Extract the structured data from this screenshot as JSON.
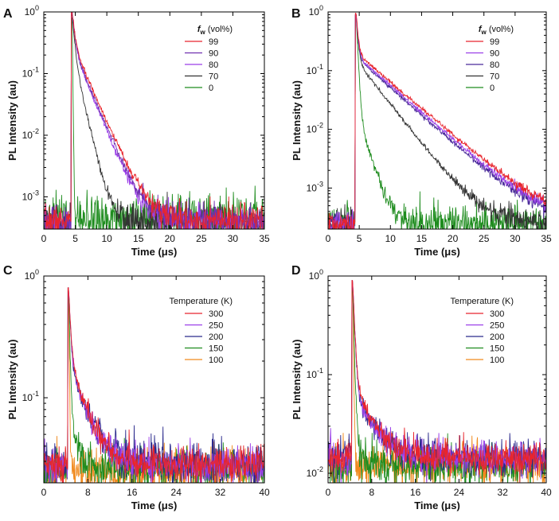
{
  "chart_data": [
    {
      "panel_label": "A",
      "type": "line",
      "yscale": "log",
      "xlabel": "Time (μs)",
      "ylabel": "PL Intensity (au)",
      "xlim": [
        0,
        35
      ],
      "ylim": [
        0.0003,
        1.0
      ],
      "xticks": [
        "0",
        "5",
        "10",
        "15",
        "20",
        "25",
        "30",
        "35"
      ],
      "xtick_values": [
        0,
        5,
        10,
        15,
        20,
        25,
        30,
        35
      ],
      "yticks": [
        {
          "value": 1,
          "base": "10",
          "exp": "0"
        },
        {
          "value": 0.1,
          "base": "10",
          "exp": "-1"
        },
        {
          "value": 0.01,
          "base": "10",
          "exp": "-2"
        },
        {
          "value": 0.001,
          "base": "10",
          "exp": "-3"
        }
      ],
      "legend_title": "f",
      "legend_title_sub": "w",
      "legend_title_rest": " (vol%)",
      "legend_position": "top-right",
      "series": [
        {
          "name": "99",
          "color": "#e8252d",
          "peak_time": 4.5,
          "peak": 1.0,
          "tau1": 0.35,
          "amp_long": 0.3,
          "tau2": 1.9,
          "floor": 0.0004,
          "noise": 0.3
        },
        {
          "name": "90",
          "color": "#7030b0",
          "peak_time": 4.5,
          "peak": 0.95,
          "tau1": 0.35,
          "amp_long": 0.28,
          "tau2": 1.8,
          "floor": 0.0004,
          "noise": 0.3
        },
        {
          "name": "80",
          "color": "#9b3fe8",
          "peak_time": 4.5,
          "peak": 0.93,
          "tau1": 0.35,
          "amp_long": 0.27,
          "tau2": 1.75,
          "floor": 0.0004,
          "noise": 0.3
        },
        {
          "name": "70",
          "color": "#333333",
          "peak_time": 4.5,
          "peak": 0.9,
          "tau1": 0.3,
          "amp_long": 0.22,
          "tau2": 1.0,
          "floor": 0.0004,
          "noise": 0.3
        },
        {
          "name": "0",
          "color": "#1e8c1e",
          "peak_time": 4.5,
          "peak": 0.8,
          "tau1": 0.05,
          "amp_long": 0.0,
          "tau2": 0.1,
          "floor": 0.00045,
          "noise": 0.45
        }
      ]
    },
    {
      "panel_label": "B",
      "type": "line",
      "yscale": "log",
      "xlabel": "Time (μs)",
      "ylabel": "PL Intensity (au)",
      "xlim": [
        0,
        35
      ],
      "ylim": [
        0.0002,
        1.0
      ],
      "xticks": [
        "0",
        "5",
        "10",
        "15",
        "20",
        "25",
        "30",
        "35"
      ],
      "xtick_values": [
        0,
        5,
        10,
        15,
        20,
        25,
        30,
        35
      ],
      "yticks": [
        {
          "value": 1,
          "base": "10",
          "exp": "0"
        },
        {
          "value": 0.1,
          "base": "10",
          "exp": "-1"
        },
        {
          "value": 0.01,
          "base": "10",
          "exp": "-2"
        },
        {
          "value": 0.001,
          "base": "10",
          "exp": "-3"
        }
      ],
      "legend_title": "f",
      "legend_title_sub": "w",
      "legend_title_rest": " (vol%)",
      "legend_position": "top-right",
      "series": [
        {
          "name": "99",
          "color": "#e8252d",
          "peak_time": 4.5,
          "peak": 0.95,
          "tau1": 0.25,
          "amp_long": 0.2,
          "tau2": 4.8,
          "floor": 0.00025,
          "noise": 0.25
        },
        {
          "name": "90",
          "color": "#9b3fe8",
          "peak_time": 4.5,
          "peak": 0.9,
          "tau1": 0.25,
          "amp_long": 0.18,
          "tau2": 4.7,
          "floor": 0.00025,
          "noise": 0.25
        },
        {
          "name": "80",
          "color": "#4a2a9a",
          "peak_time": 4.5,
          "peak": 0.9,
          "tau1": 0.25,
          "amp_long": 0.17,
          "tau2": 4.6,
          "floor": 0.00025,
          "noise": 0.25
        },
        {
          "name": "70",
          "color": "#333333",
          "peak_time": 4.5,
          "peak": 0.88,
          "tau1": 0.25,
          "amp_long": 0.15,
          "tau2": 3.2,
          "floor": 0.00025,
          "noise": 0.25
        },
        {
          "name": "0",
          "color": "#1e8c1e",
          "peak_time": 4.5,
          "peak": 0.85,
          "tau1": 0.2,
          "amp_long": 0.02,
          "tau2": 1.3,
          "floor": 0.00025,
          "noise": 0.35
        }
      ]
    },
    {
      "panel_label": "C",
      "type": "line",
      "yscale": "log",
      "xlabel": "Time (μs)",
      "ylabel": "PL Intensity (au)",
      "xlim": [
        0,
        40
      ],
      "ylim": [
        0.02,
        1.0
      ],
      "xticks": [
        "0",
        "8",
        "16",
        "24",
        "32",
        "40"
      ],
      "xtick_values": [
        0,
        8,
        16,
        24,
        32,
        40
      ],
      "yticks": [
        {
          "value": 1,
          "base": "10",
          "exp": "0"
        },
        {
          "value": 0.1,
          "base": "10",
          "exp": "-1"
        }
      ],
      "legend_title": "Temperature (K)",
      "legend_position": "top-right",
      "series": [
        {
          "name": "300",
          "color": "#e8252d",
          "peak_time": 4.5,
          "peak": 0.8,
          "tau1": 0.3,
          "amp_long": 0.2,
          "tau2": 2.5,
          "floor": 0.028,
          "noise": 0.18
        },
        {
          "name": "250",
          "color": "#9b3fe8",
          "peak_time": 4.5,
          "peak": 0.8,
          "tau1": 0.3,
          "amp_long": 0.18,
          "tau2": 2.6,
          "floor": 0.028,
          "noise": 0.18
        },
        {
          "name": "200",
          "color": "#2b2a8c",
          "peak_time": 4.5,
          "peak": 0.8,
          "tau1": 0.3,
          "amp_long": 0.16,
          "tau2": 2.8,
          "floor": 0.029,
          "noise": 0.2
        },
        {
          "name": "150",
          "color": "#1e8c1e",
          "peak_time": 4.5,
          "peak": 0.75,
          "tau1": 0.2,
          "amp_long": 0.06,
          "tau2": 1.0,
          "floor": 0.026,
          "noise": 0.2
        },
        {
          "name": "100",
          "color": "#f08a1e",
          "peak_time": 4.5,
          "peak": 0.8,
          "tau1": 0.1,
          "amp_long": 0.0,
          "tau2": 0.3,
          "floor": 0.025,
          "noise": 0.22
        }
      ]
    },
    {
      "panel_label": "D",
      "type": "line",
      "yscale": "log",
      "xlabel": "Time (μs)",
      "ylabel": "PL Intensity (au)",
      "xlim": [
        0,
        40
      ],
      "ylim": [
        0.008,
        1.0
      ],
      "xticks": [
        "0",
        "8",
        "16",
        "24",
        "32",
        "40"
      ],
      "xtick_values": [
        0,
        8,
        16,
        24,
        32,
        40
      ],
      "yticks": [
        {
          "value": 1,
          "base": "10",
          "exp": "0"
        },
        {
          "value": 0.1,
          "base": "10",
          "exp": "-1"
        },
        {
          "value": 0.01,
          "base": "10",
          "exp": "-2"
        }
      ],
      "legend_title": "Temperature (K)",
      "legend_position": "top-right",
      "series": [
        {
          "name": "300",
          "color": "#e8252d",
          "peak_time": 4.5,
          "peak": 0.9,
          "tau1": 0.3,
          "amp_long": 0.07,
          "tau2": 3.0,
          "floor": 0.014,
          "noise": 0.2
        },
        {
          "name": "250",
          "color": "#9b3fe8",
          "peak_time": 4.5,
          "peak": 0.9,
          "tau1": 0.3,
          "amp_long": 0.055,
          "tau2": 3.1,
          "floor": 0.014,
          "noise": 0.2
        },
        {
          "name": "200",
          "color": "#2b2a8c",
          "peak_time": 4.5,
          "peak": 0.9,
          "tau1": 0.3,
          "amp_long": 0.05,
          "tau2": 3.4,
          "floor": 0.015,
          "noise": 0.22
        },
        {
          "name": "150",
          "color": "#1e8c1e",
          "peak_time": 4.5,
          "peak": 0.85,
          "tau1": 0.2,
          "amp_long": 0.01,
          "tau2": 1.0,
          "floor": 0.012,
          "noise": 0.25
        },
        {
          "name": "100",
          "color": "#f08a1e",
          "peak_time": 4.5,
          "peak": 0.9,
          "tau1": 0.1,
          "amp_long": 0.0,
          "tau2": 0.3,
          "floor": 0.012,
          "noise": 0.25
        }
      ]
    }
  ]
}
